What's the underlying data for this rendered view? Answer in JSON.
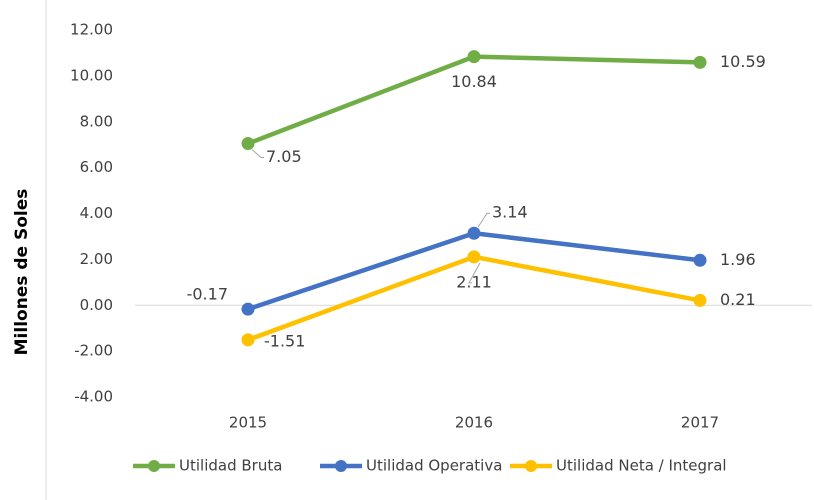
{
  "chart_data": {
    "type": "line",
    "y_label": "Millones de Soles",
    "categories": [
      "2015",
      "2016",
      "2017"
    ],
    "series": [
      {
        "name": "Utilidad Bruta",
        "color": "#70ad47",
        "values": [
          7.05,
          10.84,
          10.59
        ]
      },
      {
        "name": "Utilidad Operativa",
        "color": "#4472c4",
        "values": [
          -0.17,
          3.14,
          1.96
        ]
      },
      {
        "name": "Utilidad Neta / Integral",
        "color": "#ffc000",
        "values": [
          -1.51,
          2.11,
          0.21
        ]
      }
    ],
    "ylim": [
      -4,
      12
    ],
    "yticks": [
      {
        "value": -4,
        "label": "-4.00"
      },
      {
        "value": -2,
        "label": "-2.00"
      },
      {
        "value": 0,
        "label": "0.00"
      },
      {
        "value": 2,
        "label": "2.00"
      },
      {
        "value": 4,
        "label": "4.00"
      },
      {
        "value": 6,
        "label": "6.00"
      },
      {
        "value": 8,
        "label": "8.00"
      },
      {
        "value": 10,
        "label": "10.00"
      },
      {
        "value": 12,
        "label": "12.00"
      }
    ],
    "grid": false,
    "legend": "bottom"
  }
}
